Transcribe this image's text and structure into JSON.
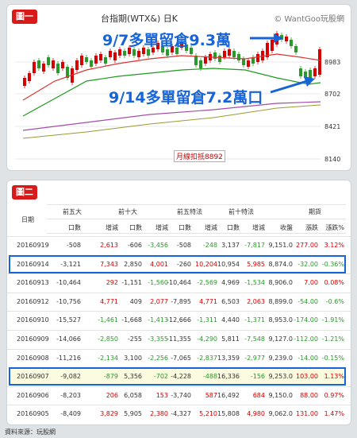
{
  "figure1": {
    "tag": "圖一",
    "title": "台指期(WTX&) 日K",
    "watermark": "© WantGoo玩股網",
    "annotation_top": "9/7多單留倉9.3萬",
    "annotation_bottom": "9/14多單留倉7.2萬口",
    "monthly_deduction": "月線扣抵8892",
    "y_ticks": [
      "8983",
      "8702",
      "8421",
      "8140"
    ]
  },
  "figure2": {
    "tag": "圖二",
    "header_date": "日期",
    "groups": [
      "前五大",
      "前十大",
      "前五特法",
      "前十特法",
      "期貨"
    ],
    "subheaders": [
      "口數",
      "增減",
      "口數",
      "增減",
      "口數",
      "增減",
      "口數",
      "增減",
      "收盤",
      "漲跌",
      "漲跌%"
    ],
    "rows": [
      {
        "date": "20160919",
        "v": [
          "-508",
          "2,613",
          "-606",
          "-3,456",
          "-508",
          "-248",
          "3,137",
          "-7,817",
          "9,151.0",
          "277.00",
          "3.12%"
        ]
      },
      {
        "date": "20160914",
        "v": [
          "-3,121",
          "7,343",
          "2,850",
          "4,001",
          "-260",
          "10,204",
          "10,954",
          "5,985",
          "8,874.0",
          "-32.00",
          "-0.36%"
        ],
        "hl": true
      },
      {
        "date": "20160913",
        "v": [
          "-10,464",
          "292",
          "-1,151",
          "-1,560",
          "-10,464",
          "-2,569",
          "4,969",
          "-1,534",
          "8,906.0",
          "7.00",
          "0.08%"
        ]
      },
      {
        "date": "20160912",
        "v": [
          "-10,756",
          "4,771",
          "409",
          "2,077",
          "-7,895",
          "4,771",
          "6,503",
          "2,063",
          "8,899.0",
          "-54.00",
          "-0.6%"
        ]
      },
      {
        "date": "20160910",
        "v": [
          "-15,527",
          "-1,461",
          "-1,668",
          "-1,413",
          "-12,666",
          "-1,311",
          "4,440",
          "-1,371",
          "8,953.0",
          "-174.00",
          "-1.91%"
        ]
      },
      {
        "date": "20160909",
        "v": [
          "-14,066",
          "-2,850",
          "-255",
          "-3,355",
          "-11,355",
          "-4,290",
          "5,811",
          "-7,548",
          "9,127.0",
          "-112.00",
          "-1.21%"
        ]
      },
      {
        "date": "20160908",
        "v": [
          "-11,216",
          "-2,134",
          "3,100",
          "-2,256",
          "-7,065",
          "-2,837",
          "13,359",
          "-2,977",
          "9,239.0",
          "-14.00",
          "-0.15%"
        ]
      },
      {
        "date": "20160907",
        "v": [
          "-9,082",
          "-879",
          "5,356",
          "-702",
          "-4,228",
          "-488",
          "16,336",
          "-156",
          "9,253.0",
          "103.00",
          "1.13%"
        ],
        "hl": true
      },
      {
        "date": "20160906",
        "v": [
          "-8,203",
          "206",
          "6,058",
          "153",
          "-3,740",
          "587",
          "16,492",
          "684",
          "9,150.0",
          "88.00",
          "0.97%"
        ]
      },
      {
        "date": "20160905",
        "v": [
          "-8,409",
          "3,829",
          "5,905",
          "2,380",
          "-4,327",
          "5,210",
          "15,808",
          "4,980",
          "9,062.0",
          "131.00",
          "1.47%"
        ]
      }
    ]
  },
  "source": "資料來源：玩股網",
  "colors": {
    "up": "#d60000",
    "down": "#2a9a2a",
    "highlight": "#1764d8",
    "tag": "#d91a1a"
  }
}
